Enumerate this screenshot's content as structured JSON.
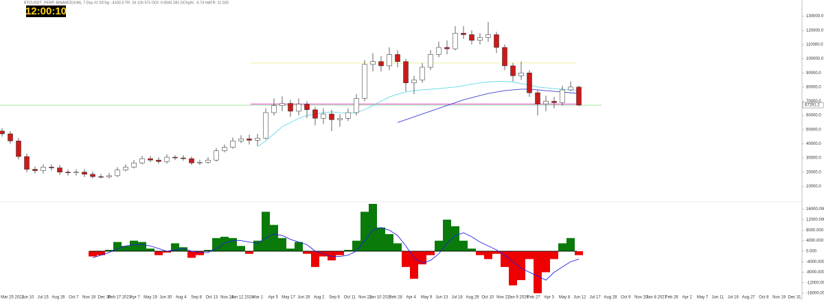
{
  "chart_data": {
    "type": "candlestick",
    "header": "BTCUSDT_PERP, BINANCE(UM), 7 Day #1 DChg: -4100.3 TR: 2d 12h 57s DOI: 0.0043 281 DChg%: -5.74 NATR: 11.025",
    "clock": "12:00:10",
    "x_labels": [
      "Mar 25 2022",
      "Jun 10",
      "Jul 15",
      "Aug 26",
      "Oct 7",
      "Nov 18",
      "Dec 30",
      "Feb 17 2023",
      "Apr 7",
      "May 19",
      "Jun 30",
      "Aug 4",
      "Sep 8",
      "Oct 13",
      "Nov 24",
      "Jan 12 2024",
      "Mar 1",
      "Apr 5",
      "May 17",
      "Jun 28",
      "Aug 2",
      "Sep 6",
      "Oct 11",
      "Nov 22",
      "Jan 10 2025",
      "Feb 28",
      "Apr 4",
      "May 9",
      "Jun 13",
      "Jul 18",
      "Aug 29",
      "Oct 10",
      "Nov 21",
      "Jan 9 2026",
      "Feb 27",
      "Apr 3",
      "May 8",
      "Jun 12",
      "Jul 17",
      "Aug 28",
      "Oct 9",
      "Nov 20",
      "Jan 8 2027",
      "Feb 26",
      "Apr 2",
      "May 7",
      "Jun 11",
      "Jul 16",
      "Aug 27",
      "Oct 8",
      "Nov 19",
      "Dec 31"
    ],
    "open": [
      49000,
      47000,
      42000,
      31000,
      22000,
      21000,
      23500,
      23000,
      20000,
      19500,
      20000,
      18500,
      16800,
      16700,
      17500,
      21500,
      23500,
      26500,
      29500,
      28500,
      27500,
      30500,
      30000,
      29500,
      26500,
      27000,
      28500,
      35000,
      37500,
      42000,
      43500,
      42500,
      44000,
      62000,
      67000,
      68500,
      63000,
      68000,
      64000,
      58000,
      61000,
      57000,
      58000,
      62000,
      72000,
      96000,
      98000,
      95000,
      103000,
      98000,
      83000,
      85000,
      94000,
      103000,
      108000,
      107000,
      118000,
      117000,
      113000,
      115000,
      117000,
      108000,
      95000,
      88000,
      90000,
      76000,
      68000,
      70000,
      69000,
      78000,
      80000
    ],
    "high": [
      51000,
      49000,
      44000,
      33000,
      24000,
      25500,
      25500,
      25000,
      22000,
      22000,
      22000,
      20500,
      18800,
      19500,
      23500,
      25500,
      28500,
      31500,
      31500,
      30500,
      32500,
      32000,
      32000,
      31000,
      28500,
      30500,
      37000,
      39500,
      44500,
      46000,
      46500,
      47000,
      65000,
      72000,
      73500,
      71000,
      72000,
      70000,
      66000,
      65000,
      64000,
      61000,
      65000,
      75000,
      99000,
      104000,
      102000,
      108000,
      106000,
      100000,
      88000,
      97000,
      106000,
      112000,
      113000,
      123000,
      123000,
      120000,
      118000,
      126000,
      119000,
      110000,
      97000,
      98000,
      92000,
      78000,
      74000,
      73000,
      81000,
      84000,
      81000
    ],
    "low": [
      45000,
      40000,
      29000,
      20000,
      19000,
      19000,
      21000,
      18000,
      17500,
      17500,
      16500,
      15500,
      15500,
      15500,
      16500,
      20500,
      22500,
      25500,
      27000,
      26000,
      26000,
      28500,
      28000,
      25000,
      25000,
      26000,
      27500,
      34000,
      36500,
      40500,
      39500,
      38500,
      43000,
      60000,
      63000,
      59000,
      60000,
      58000,
      53000,
      54000,
      49000,
      52000,
      56000,
      60000,
      70000,
      91000,
      91000,
      92000,
      94000,
      77000,
      75000,
      83000,
      92000,
      101000,
      103000,
      106000,
      114000,
      110000,
      110000,
      112000,
      104000,
      92000,
      84000,
      85000,
      73000,
      60000,
      63000,
      65000,
      67000,
      77000,
      66500
    ],
    "close": [
      47000,
      42000,
      31000,
      22000,
      21000,
      23500,
      23000,
      20000,
      19500,
      20000,
      18500,
      16800,
      16700,
      17500,
      21500,
      23500,
      26500,
      29500,
      28500,
      27500,
      30500,
      30000,
      29500,
      26500,
      27000,
      28500,
      35000,
      37500,
      42000,
      43500,
      42500,
      44000,
      62000,
      67000,
      68500,
      63000,
      68000,
      64000,
      58000,
      61000,
      57000,
      58000,
      62000,
      72000,
      96000,
      98000,
      95000,
      103000,
      98000,
      83000,
      85000,
      94000,
      103000,
      108000,
      107000,
      118000,
      117000,
      113000,
      115000,
      117000,
      108000,
      95000,
      88000,
      90000,
      76000,
      68000,
      70000,
      69000,
      78000,
      80000,
      67291
    ],
    "up_color": "#ffffff",
    "down_color": "#cc1a1a",
    "ma_lines": [
      {
        "color": "#5fd8e8",
        "values": [
          null,
          null,
          null,
          null,
          null,
          null,
          null,
          null,
          null,
          null,
          null,
          null,
          null,
          null,
          null,
          null,
          null,
          null,
          null,
          null,
          null,
          null,
          null,
          null,
          null,
          null,
          null,
          null,
          null,
          null,
          null,
          38000,
          42000,
          47000,
          52000,
          55000,
          58000,
          60000,
          61000,
          62000,
          62500,
          62000,
          61500,
          62000,
          64000,
          67000,
          70000,
          73000,
          75000,
          76500,
          77500,
          78000,
          78500,
          79000,
          79500,
          80000,
          81000,
          82000,
          83000,
          83500,
          84000,
          84000,
          83500,
          82500,
          81500,
          80000,
          79500,
          79000,
          78500,
          78000,
          77500
        ]
      },
      {
        "color": "#3b3fd0",
        "values": [
          null,
          null,
          null,
          null,
          null,
          null,
          null,
          null,
          null,
          null,
          null,
          null,
          null,
          null,
          null,
          null,
          null,
          null,
          null,
          null,
          null,
          null,
          null,
          null,
          null,
          null,
          null,
          null,
          null,
          null,
          null,
          null,
          null,
          null,
          null,
          null,
          null,
          null,
          null,
          null,
          null,
          null,
          null,
          null,
          null,
          null,
          null,
          null,
          55000,
          57000,
          59000,
          61000,
          63000,
          65000,
          67000,
          69000,
          71000,
          72500,
          74000,
          75500,
          76500,
          77500,
          78000,
          78500,
          78500,
          78000,
          77500,
          77000,
          76500,
          76000,
          75500
        ]
      }
    ],
    "levels": [
      {
        "value": 68000,
        "color": "#e040c8"
      },
      {
        "value": 97000,
        "color": "#f0f0a0"
      }
    ],
    "last_price": 67291.2,
    "last_price_color": "#7fd87f",
    "ylim": [
      0,
      140000
    ],
    "yticks": [
      {
        "value": 10000,
        "label": "10000.0"
      },
      {
        "value": 20000,
        "label": "20000.0"
      },
      {
        "value": 30000,
        "label": "30000.0"
      },
      {
        "value": 40000,
        "label": "40000.0"
      },
      {
        "value": 50000,
        "label": "50000.0"
      },
      {
        "value": 60000,
        "label": "60000.0"
      },
      {
        "value": 70000,
        "label": "70000.0"
      },
      {
        "value": 80000,
        "label": "80000.0"
      },
      {
        "value": 90000,
        "label": "90000.0"
      },
      {
        "value": 100000,
        "label": "100000.0"
      },
      {
        "value": 110000,
        "label": "110000.0"
      },
      {
        "value": 120000,
        "label": "120000.0"
      },
      {
        "value": 130000,
        "label": "130000.0"
      }
    ],
    "oscillator": {
      "values": [
        null,
        null,
        null,
        null,
        null,
        null,
        null,
        null,
        null,
        null,
        null,
        -2000,
        -1500,
        500,
        3500,
        2000,
        4000,
        3500,
        1000,
        -1500,
        -500,
        3000,
        1500,
        -2500,
        -1500,
        500,
        5000,
        5500,
        5000,
        2000,
        -1000,
        4000,
        15000,
        10000,
        5000,
        1000,
        3500,
        -1000,
        -6000,
        -2000,
        -3500,
        -1500,
        500,
        4000,
        15000,
        18000,
        9000,
        6500,
        3000,
        -6000,
        -10500,
        -5000,
        -1500,
        4000,
        12000,
        9500,
        4000,
        1000,
        -1500,
        -3000,
        -1000,
        -6000,
        -13000,
        -11000,
        -3000,
        -16000,
        -8000,
        -3000,
        3000,
        5000,
        -1500
      ],
      "signal": [
        null,
        null,
        null,
        null,
        null,
        null,
        null,
        null,
        null,
        null,
        null,
        -2500,
        -1500,
        -500,
        1000,
        2000,
        2500,
        2500,
        2000,
        1000,
        0,
        500,
        1000,
        0,
        -500,
        -500,
        1000,
        3000,
        4000,
        4000,
        3500,
        3000,
        5000,
        6500,
        6000,
        4500,
        3500,
        2500,
        0,
        -1000,
        -2000,
        -2000,
        -1500,
        0,
        4000,
        8000,
        9000,
        8000,
        6000,
        2000,
        -2500,
        -4500,
        -3500,
        -1000,
        3000,
        6000,
        7000,
        5500,
        3500,
        2000,
        500,
        -1500,
        -4000,
        -6500,
        -8000,
        -9500,
        -11000,
        -8000,
        -6000,
        -4000,
        -3000
      ],
      "pos_color": "#0a7a0a",
      "neg_color": "#ee0000",
      "signal_color": "#2020e0",
      "ylim": [
        -17000,
        18000
      ],
      "yticks": [
        {
          "value": 16000,
          "label": "16000.000"
        },
        {
          "value": 12000,
          "label": "12000.000"
        },
        {
          "value": 8000,
          "label": "8000.000"
        },
        {
          "value": 4000,
          "label": "4000.000"
        },
        {
          "value": 0,
          "label": "0.000"
        },
        {
          "value": -4000,
          "label": "-4000.000"
        },
        {
          "value": -8000,
          "label": "-8000.000"
        },
        {
          "value": -12000,
          "label": "-12000.000"
        },
        {
          "value": -16000,
          "label": "-16000.000"
        }
      ]
    }
  }
}
